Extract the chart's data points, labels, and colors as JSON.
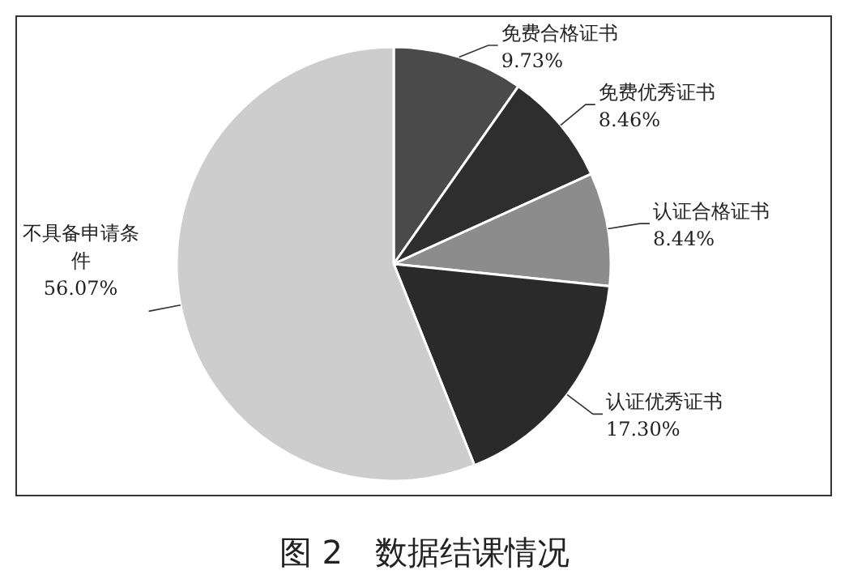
{
  "chart_data": {
    "type": "pie",
    "title": "图 2　数据结课情况",
    "categories": [
      "免费合格证书",
      "免费优秀证书",
      "认证合格证书",
      "认证优秀证书",
      "不具备申请条件"
    ],
    "values": [
      9.73,
      8.46,
      8.44,
      17.3,
      56.07
    ],
    "colors": [
      "#4a4a4a",
      "#2e2e2e",
      "#8c8c8c",
      "#2a2a2a",
      "#cdcdcd"
    ],
    "value_labels": [
      "9.73%",
      "8.46%",
      "8.44%",
      "17.30%",
      "56.07%"
    ]
  }
}
